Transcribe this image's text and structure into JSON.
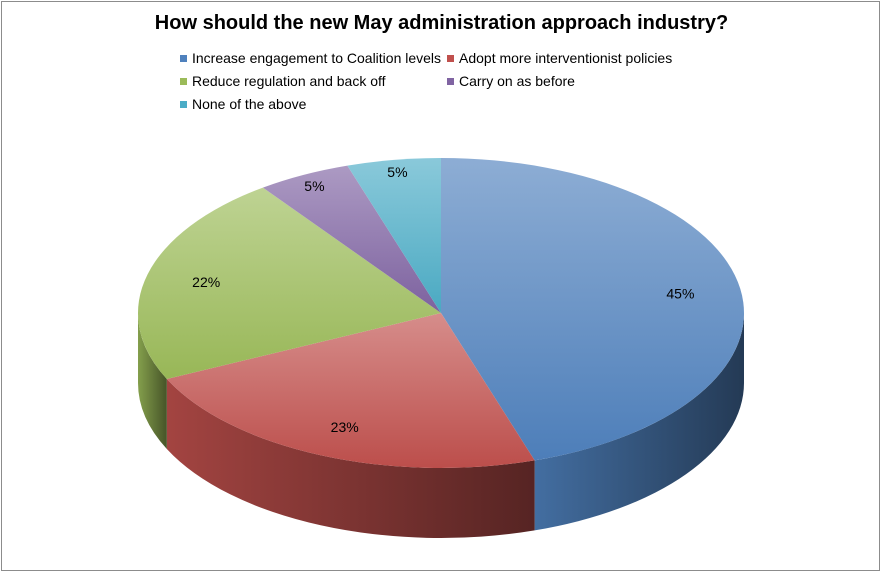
{
  "chart_data": {
    "type": "pie",
    "title": "How should the new May administration approach industry?",
    "series": [
      {
        "name": "Increase engagement to Coalition levels",
        "value": 45,
        "label": "45%",
        "color": "#4f81bd"
      },
      {
        "name": "Adopt more interventionist policies",
        "value": 23,
        "label": "23%",
        "color": "#c0504d"
      },
      {
        "name": "Reduce regulation and back off",
        "value": 22,
        "label": "22%",
        "color": "#9bbb59"
      },
      {
        "name": "Carry on as before",
        "value": 5,
        "label": "5%",
        "color": "#8064a2"
      },
      {
        "name": "None of the above",
        "value": 5,
        "label": "5%",
        "color": "#4bacc6"
      }
    ],
    "legend_position": "top",
    "style": "3d"
  }
}
